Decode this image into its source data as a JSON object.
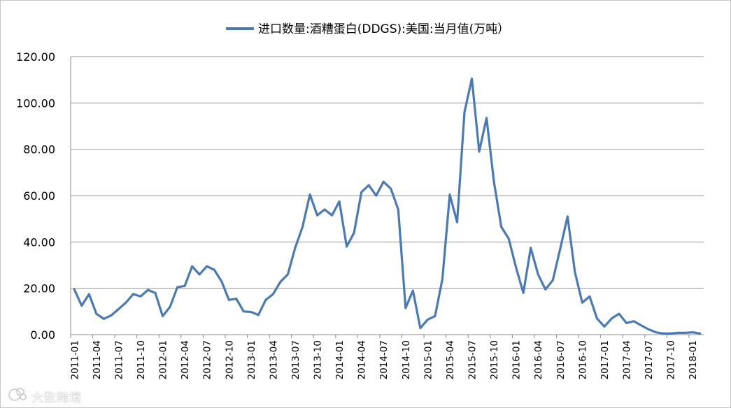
{
  "chart_data": {
    "type": "line",
    "legend": {
      "position": "top",
      "label": "进口数量:酒糟蛋白(DDGS):美国:当月值(万吨）"
    },
    "series": [
      {
        "name": "进口数量:酒糟蛋白(DDGS):美国:当月值(万吨）",
        "color": "#4a7ab5",
        "values": [
          19.5,
          12.5,
          17.5,
          9.0,
          6.8,
          8.3,
          11.0,
          13.8,
          17.5,
          16.5,
          19.3,
          18.0,
          8.0,
          12.0,
          20.5,
          21.0,
          29.5,
          26.0,
          29.5,
          28.0,
          23.0,
          15.0,
          15.5,
          10.0,
          9.8,
          8.5,
          15.0,
          17.5,
          22.8,
          26.0,
          37.5,
          46.5,
          60.5,
          51.5,
          54.0,
          51.5,
          57.5,
          38.0,
          44.0,
          61.5,
          64.5,
          60.0,
          66.0,
          63.0,
          54.0,
          11.5,
          19.0,
          2.8,
          6.5,
          8.0,
          24.0,
          60.5,
          48.5,
          96.0,
          110.5,
          79.0,
          93.5,
          66.0,
          46.5,
          41.5,
          29.0,
          18.0,
          37.5,
          26.0,
          19.5,
          23.5,
          37.0,
          51.0,
          27.0,
          13.8,
          16.5,
          7.0,
          3.5,
          7.0,
          9.0,
          5.0,
          5.8,
          4.0,
          2.3,
          1.0,
          0.5,
          0.5,
          0.8,
          0.8,
          1.0,
          0.5
        ]
      }
    ],
    "x_tick_labels": [
      "2011-01",
      "2011-04",
      "2011-07",
      "2011-10",
      "2012-01",
      "2012-04",
      "2012-07",
      "2012-10",
      "2013-01",
      "2013-04",
      "2013-07",
      "2013-10",
      "2014-01",
      "2014-04",
      "2014-07",
      "2014-10",
      "2015-01",
      "2015-04",
      "2015-07",
      "2015-10",
      "2016-01",
      "2016-04",
      "2016-07",
      "2016-10",
      "2017-01",
      "2017-04",
      "2017-07",
      "2017-10",
      "2018-01"
    ],
    "x_tick_step": 3,
    "ylim": [
      0,
      120
    ],
    "y_tick_labels": [
      "0.00",
      "20.00",
      "40.00",
      "60.00",
      "80.00",
      "100.00",
      "120.00"
    ],
    "y_tick_values": [
      0,
      20,
      40,
      60,
      80,
      100,
      120
    ],
    "grid": "horizontal",
    "title": "",
    "xlabel": "",
    "ylabel": ""
  },
  "watermark": {
    "text": "大数跨境",
    "icon": "fan-logo-icon"
  }
}
